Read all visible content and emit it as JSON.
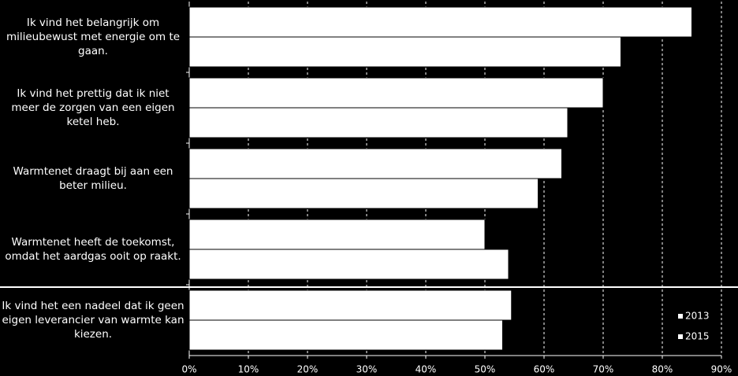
{
  "chart_data": {
    "type": "hbar",
    "categories": [
      "Ik vind het belangrijk om milieubewust met energie om te gaan.",
      "Ik vind het prettig dat ik niet meer de zorgen van een eigen ketel heb.",
      "Warmtenet draagt bij aan een beter milieu.",
      "Warmtenet heeft de toekomst, omdat het aardgas ooit op raakt.",
      "Ik vind het een nadeel dat ik geen eigen leverancier van warmte kan kiezen."
    ],
    "series": [
      {
        "name": "2013",
        "color": "#ffffff",
        "values": [
          85,
          70,
          63,
          50,
          54.5
        ]
      },
      {
        "name": "2015",
        "color": "#ffffff",
        "values": [
          73,
          64,
          59,
          54,
          53
        ]
      }
    ],
    "xlim": [
      0,
      0.9
    ],
    "xticks": [
      {
        "value": 0,
        "label": "0%"
      },
      {
        "value": 0.1,
        "label": "10%"
      },
      {
        "value": 0.2,
        "label": "20%"
      },
      {
        "value": 0.3,
        "label": "30%"
      },
      {
        "value": 0.4,
        "label": "40%"
      },
      {
        "value": 0.5,
        "label": "50%"
      },
      {
        "value": 0.6,
        "label": "60%"
      },
      {
        "value": 0.7,
        "label": "70%"
      },
      {
        "value": 0.8,
        "label": "80%"
      },
      {
        "value": 0.9,
        "label": "90%"
      }
    ],
    "value_scale": 100,
    "grid": true,
    "legend": "lower right"
  }
}
